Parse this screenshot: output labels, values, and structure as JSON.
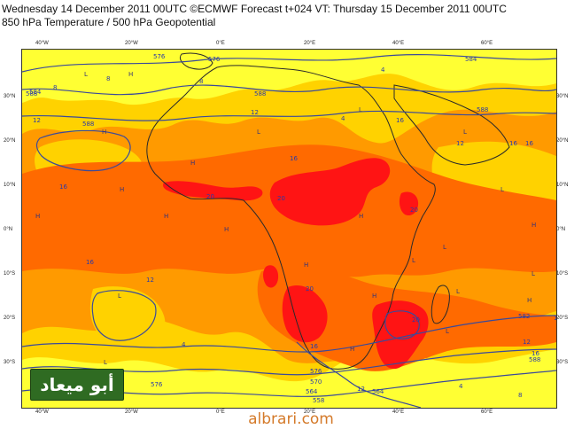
{
  "header": {
    "line1": "Wednesday 14 December 2011 00UTC ©ECMWF Forecast t+024 VT: Thursday 15 December 2011 00UTC",
    "line2": "850 hPa Temperature / 500 hPa Geopotential"
  },
  "axes": {
    "lon_labels": [
      "40°W",
      "20°W",
      "0°E",
      "20°E",
      "40°E",
      "60°E"
    ],
    "lat_labels": [
      "30°N",
      "20°N",
      "10°N",
      "0°N",
      "10°S",
      "20°S",
      "30°S"
    ]
  },
  "map": {
    "colors": {
      "cold_yellow": "#ffff33",
      "cool_yellow": "#ffd200",
      "warm_orange": "#ff9a00",
      "hot_orange": "#ff6a00",
      "very_hot_red": "#ff1414",
      "contour_blue": "#3b4a9a",
      "coast": "#2a2a2a"
    },
    "contour_labels": [
      "576",
      "576",
      "584",
      "584",
      "588",
      "588",
      "588",
      "588",
      "582",
      "576",
      "570",
      "564",
      "558",
      "564",
      "576",
      "588"
    ],
    "temperature_labels": [
      "8",
      "4",
      "12",
      "16",
      "16",
      "16",
      "16",
      "20",
      "20",
      "20",
      "20",
      "16",
      "12",
      "16",
      "20",
      "18",
      "12",
      "8",
      "4",
      "4",
      "12",
      "12",
      "16",
      "8",
      "4",
      "8",
      "12",
      "16"
    ],
    "pressure_marks": [
      "H",
      "H",
      "H",
      "H",
      "H",
      "H",
      "L",
      "L",
      "L",
      "L",
      "L",
      "L",
      "H",
      "H",
      "L",
      "H",
      "L",
      "H",
      "L",
      "L",
      "H",
      "L",
      "H",
      "L",
      "H"
    ]
  },
  "watermark": "أبو ميعاد",
  "footer": "albrari.com"
}
